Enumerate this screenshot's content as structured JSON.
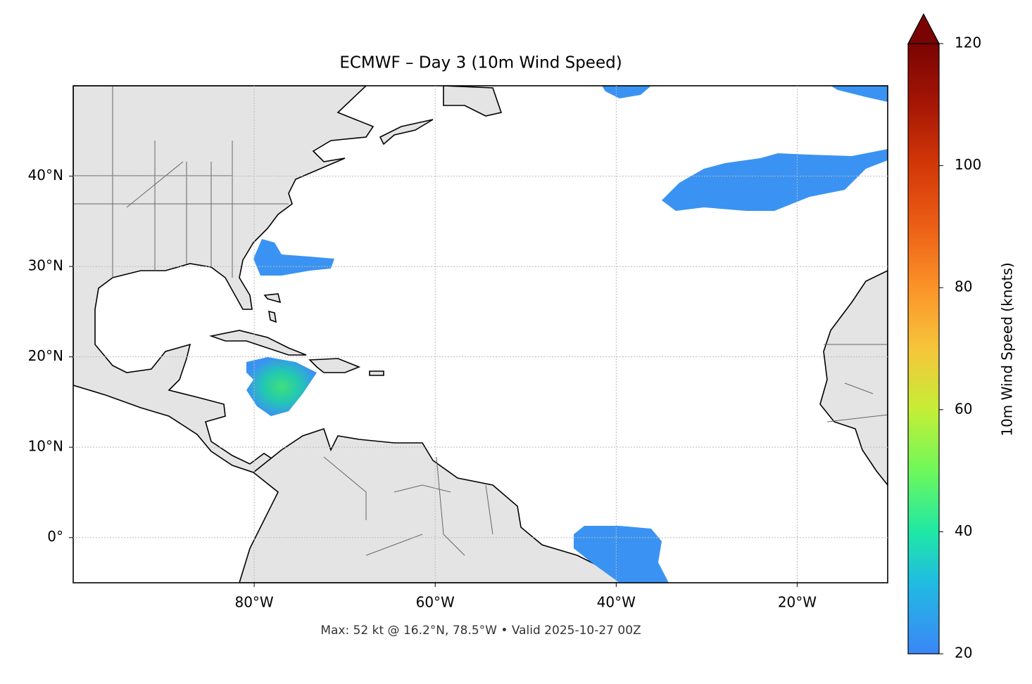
{
  "chart_data": {
    "type": "map",
    "title": "ECMWF – Day 3 (10m Wind Speed)",
    "annotation": "Max: 52 kt @ 16.2°N, 78.5°W • Valid 2025-10-27 00Z",
    "xlim": [
      -100,
      -10
    ],
    "ylim": [
      -5,
      50
    ],
    "xticks": [
      {
        "value": -80,
        "label": "80°W"
      },
      {
        "value": -60,
        "label": "60°W"
      },
      {
        "value": -40,
        "label": "40°W"
      },
      {
        "value": -20,
        "label": "20°W"
      }
    ],
    "yticks": [
      {
        "value": 0,
        "label": "0°"
      },
      {
        "value": 10,
        "label": "10°N"
      },
      {
        "value": 20,
        "label": "20°N"
      },
      {
        "value": 30,
        "label": "30°N"
      },
      {
        "value": 40,
        "label": "40°N"
      }
    ],
    "grid": true,
    "colormap": "turbo",
    "colorbar": {
      "label": "10m Wind Speed (knots)",
      "lim": [
        20,
        120
      ],
      "ticks": [
        20,
        40,
        60,
        80,
        100,
        120
      ],
      "extend": "max"
    }
  }
}
